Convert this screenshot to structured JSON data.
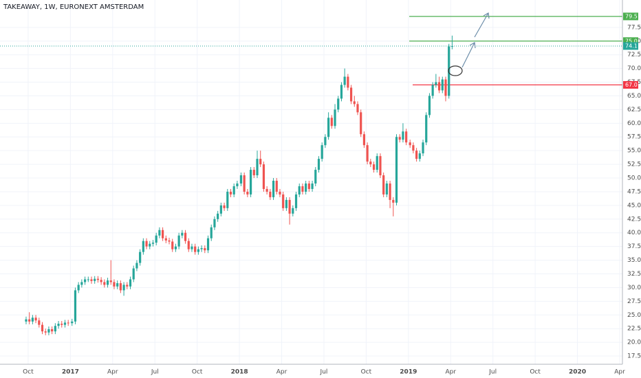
{
  "chart_data": {
    "type": "candlestick",
    "title": "TAKEAWAY, 1W, EURONEXT AMSTERDAM",
    "up_color": "#26a69a",
    "down_color": "#ef5350",
    "x": [
      "2016-W39",
      "2016-W40",
      "2016-W41",
      "2016-W42",
      "2016-W43",
      "2016-W44",
      "2016-W45",
      "2016-W46",
      "2016-W47",
      "2016-W48",
      "2016-W49",
      "2016-W50",
      "2016-W51",
      "2016-W52",
      "2017-W01",
      "2017-W02",
      "2017-W03",
      "2017-W04",
      "2017-W05",
      "2017-W06",
      "2017-W07",
      "2017-W08",
      "2017-W09",
      "2017-W10",
      "2017-W11",
      "2017-W12",
      "2017-W13",
      "2017-W14",
      "2017-W15",
      "2017-W16",
      "2017-W17",
      "2017-W18",
      "2017-W19",
      "2017-W20",
      "2017-W21",
      "2017-W22",
      "2017-W23",
      "2017-W24",
      "2017-W25",
      "2017-W26",
      "2017-W27",
      "2017-W28",
      "2017-W29",
      "2017-W30",
      "2017-W31",
      "2017-W32",
      "2017-W33",
      "2017-W34",
      "2017-W35",
      "2017-W36",
      "2017-W37",
      "2017-W38",
      "2017-W39",
      "2017-W40",
      "2017-W41",
      "2017-W42",
      "2017-W43",
      "2017-W44",
      "2017-W45",
      "2017-W46",
      "2017-W47",
      "2017-W48",
      "2017-W49",
      "2017-W50",
      "2017-W51",
      "2017-W52",
      "2018-W01",
      "2018-W02",
      "2018-W03",
      "2018-W04",
      "2018-W05",
      "2018-W06",
      "2018-W07",
      "2018-W08",
      "2018-W09",
      "2018-W10",
      "2018-W11",
      "2018-W12",
      "2018-W13",
      "2018-W14",
      "2018-W15",
      "2018-W16",
      "2018-W17",
      "2018-W18",
      "2018-W19",
      "2018-W20",
      "2018-W21",
      "2018-W22",
      "2018-W23",
      "2018-W24",
      "2018-W25",
      "2018-W26",
      "2018-W27",
      "2018-W28",
      "2018-W29",
      "2018-W30",
      "2018-W31",
      "2018-W32",
      "2018-W33",
      "2018-W34",
      "2018-W35",
      "2018-W36",
      "2018-W37",
      "2018-W38",
      "2018-W39",
      "2018-W40",
      "2018-W41",
      "2018-W42",
      "2018-W43",
      "2018-W44",
      "2018-W45",
      "2018-W46",
      "2018-W47",
      "2018-W48",
      "2018-W49",
      "2018-W50",
      "2018-W51",
      "2018-W52",
      "2019-W01",
      "2019-W02",
      "2019-W03",
      "2019-W04",
      "2019-W05",
      "2019-W06",
      "2019-W07",
      "2019-W08",
      "2019-W09",
      "2019-W10",
      "2019-W11",
      "2019-W12",
      "2019-W13",
      "2019-W14"
    ],
    "open": [
      23.8,
      24.2,
      23.8,
      24.5,
      24.0,
      23.2,
      22.0,
      21.8,
      22.4,
      22.0,
      23.0,
      23.4,
      23.2,
      23.6,
      23.5,
      23.8,
      29.5,
      30.5,
      31.0,
      31.5,
      31.5,
      31.2,
      31.6,
      31.4,
      31.0,
      30.5,
      31.3,
      31.0,
      30.2,
      30.8,
      29.5,
      30.5,
      30.2,
      31.5,
      33.5,
      34.5,
      36.5,
      38.5,
      37.5,
      38.0,
      38.2,
      39.5,
      40.5,
      39.0,
      38.6,
      38.4,
      37.0,
      37.5,
      39.5,
      40.0,
      38.5,
      37.0,
      37.5,
      36.5,
      37.0,
      37.2,
      36.8,
      39.0,
      41.0,
      42.5,
      43.5,
      45.0,
      44.5,
      47.5,
      47.0,
      48.5,
      49.0,
      50.5,
      47.5,
      47.0,
      51.5,
      50.5,
      53.5,
      52.5,
      48.0,
      47.5,
      46.5,
      49.5,
      47.5,
      47.0,
      44.5,
      46.0,
      43.5,
      44.5,
      47.0,
      48.5,
      47.5,
      49.0,
      48.0,
      49.0,
      51.5,
      53.5,
      56.0,
      57.5,
      61.0,
      59.5,
      62.5,
      64.5,
      67.0,
      68.5,
      66.5,
      64.0,
      63.5,
      62.0,
      58.0,
      56.0,
      53.0,
      52.5,
      51.5,
      54.0,
      50.5,
      47.0,
      49.0,
      46.0,
      45.5,
      57.5,
      57.0,
      58.5,
      56.5,
      56.0,
      55.0,
      53.5,
      54.5,
      56.5,
      61.5,
      65.0,
      67.0,
      67.5,
      66.0,
      68.0,
      65.0,
      74.0
    ],
    "high": [
      24.7,
      25.5,
      25.0,
      25.0,
      24.5,
      23.7,
      22.5,
      22.9,
      22.9,
      23.5,
      23.9,
      23.9,
      24.1,
      24.1,
      24.3,
      30.0,
      31.0,
      31.5,
      32.0,
      32.0,
      32.0,
      32.1,
      32.1,
      31.9,
      31.5,
      31.8,
      35.0,
      31.5,
      31.3,
      31.3,
      31.0,
      31.0,
      32.0,
      34.0,
      35.0,
      37.0,
      39.0,
      39.0,
      38.5,
      38.7,
      40.0,
      41.0,
      41.0,
      39.5,
      39.1,
      38.9,
      38.0,
      40.0,
      40.5,
      40.5,
      39.0,
      38.0,
      38.0,
      37.5,
      37.7,
      37.7,
      39.5,
      41.5,
      43.0,
      44.0,
      45.5,
      45.5,
      48.0,
      48.0,
      49.0,
      49.5,
      51.0,
      51.0,
      48.0,
      52.0,
      52.0,
      55.0,
      55.0,
      53.0,
      48.5,
      48.0,
      50.0,
      50.0,
      48.0,
      47.5,
      46.5,
      46.5,
      45.0,
      47.5,
      49.0,
      49.0,
      49.5,
      49.5,
      49.5,
      52.0,
      54.0,
      56.5,
      58.0,
      62.0,
      61.5,
      63.5,
      65.0,
      67.5,
      70.0,
      69.0,
      67.0,
      65.0,
      64.0,
      62.5,
      58.5,
      56.5,
      53.5,
      53.0,
      54.5,
      54.5,
      51.0,
      49.5,
      49.5,
      46.5,
      58.0,
      58.0,
      60.0,
      59.0,
      57.0,
      56.5,
      55.5,
      55.0,
      57.0,
      62.0,
      65.5,
      67.5,
      69.0,
      68.5,
      68.5,
      68.5,
      74.5,
      76.0
    ],
    "low": [
      23.3,
      23.3,
      23.3,
      23.5,
      22.7,
      21.5,
      21.3,
      21.3,
      21.5,
      21.5,
      22.5,
      22.7,
      22.7,
      23.0,
      23.0,
      23.3,
      29.0,
      30.0,
      30.5,
      31.0,
      30.7,
      30.7,
      30.9,
      30.5,
      30.0,
      30.0,
      30.5,
      29.7,
      29.7,
      29.0,
      28.5,
      29.7,
      29.7,
      31.0,
      33.0,
      34.0,
      36.0,
      37.0,
      37.0,
      37.5,
      37.7,
      39.0,
      38.5,
      38.1,
      37.9,
      36.5,
      36.5,
      37.0,
      39.0,
      38.0,
      36.5,
      36.5,
      36.0,
      36.0,
      36.5,
      36.3,
      36.3,
      38.5,
      40.5,
      42.0,
      43.0,
      44.0,
      44.0,
      46.5,
      46.5,
      48.0,
      48.5,
      47.0,
      46.5,
      46.5,
      50.0,
      50.0,
      52.0,
      47.5,
      47.0,
      46.0,
      46.0,
      47.0,
      46.5,
      44.0,
      44.0,
      41.5,
      43.0,
      44.0,
      46.5,
      47.0,
      47.0,
      47.5,
      47.5,
      48.5,
      51.0,
      53.0,
      55.5,
      57.0,
      59.0,
      59.0,
      62.0,
      64.0,
      66.5,
      66.0,
      63.5,
      63.0,
      61.5,
      57.5,
      55.5,
      52.5,
      52.0,
      51.0,
      51.0,
      50.0,
      46.5,
      46.5,
      44.5,
      43.0,
      45.0,
      56.5,
      56.5,
      56.0,
      55.5,
      54.5,
      53.0,
      53.0,
      54.0,
      56.0,
      61.0,
      64.5,
      66.5,
      65.5,
      65.5,
      64.0,
      64.5,
      73.5
    ],
    "close": [
      24.2,
      23.8,
      24.5,
      24.0,
      23.2,
      22.0,
      21.8,
      22.4,
      22.0,
      23.0,
      23.4,
      23.2,
      23.6,
      23.5,
      23.8,
      29.5,
      30.5,
      31.0,
      31.5,
      31.5,
      31.2,
      31.6,
      31.4,
      31.0,
      30.5,
      31.3,
      31.0,
      30.2,
      30.8,
      29.5,
      30.5,
      30.2,
      31.5,
      33.5,
      34.5,
      36.5,
      38.5,
      37.5,
      38.0,
      38.2,
      39.5,
      40.5,
      39.0,
      38.6,
      38.4,
      37.0,
      37.5,
      39.5,
      40.0,
      38.5,
      37.0,
      37.5,
      36.5,
      37.0,
      37.2,
      36.8,
      39.0,
      41.0,
      42.5,
      43.5,
      45.0,
      44.5,
      47.5,
      47.0,
      48.5,
      49.0,
      50.5,
      47.5,
      47.0,
      51.5,
      50.5,
      53.5,
      52.5,
      48.0,
      47.5,
      46.5,
      49.5,
      47.5,
      47.0,
      44.5,
      46.0,
      43.5,
      44.5,
      47.0,
      48.5,
      47.5,
      49.0,
      48.0,
      49.0,
      51.5,
      53.5,
      56.0,
      57.5,
      61.0,
      59.5,
      62.5,
      64.5,
      67.0,
      68.5,
      66.5,
      64.0,
      63.5,
      62.0,
      58.0,
      56.0,
      53.0,
      52.5,
      51.5,
      54.0,
      50.5,
      47.0,
      49.0,
      46.0,
      45.5,
      57.5,
      57.0,
      58.5,
      56.5,
      56.0,
      55.0,
      53.5,
      54.5,
      56.5,
      61.5,
      65.0,
      67.0,
      67.5,
      66.0,
      68.0,
      65.0,
      74.0,
      74.1
    ],
    "last_price": 74.1,
    "levels": [
      {
        "value": 79.5,
        "color": "#4caf50"
      },
      {
        "value": 75,
        "label": "75.0",
        "color": "#4caf50"
      },
      {
        "value": 67,
        "label": "67.0",
        "color": "#f23645"
      }
    ],
    "xlim": [
      "2016-08",
      "2020-04"
    ],
    "xticks": [
      {
        "value": "2016-10",
        "label": "Oct"
      },
      {
        "value": "2017-01",
        "label": "2017"
      },
      {
        "value": "2017-04",
        "label": "Apr"
      },
      {
        "value": "2017-07",
        "label": "Jul"
      },
      {
        "value": "2017-10",
        "label": "Oct"
      },
      {
        "value": "2018-01",
        "label": "2018"
      },
      {
        "value": "2018-04",
        "label": "Apr"
      },
      {
        "value": "2018-07",
        "label": "Jul"
      },
      {
        "value": "2018-10",
        "label": "Oct"
      },
      {
        "value": "2019-01",
        "label": "2019"
      },
      {
        "value": "2019-04",
        "label": "Apr"
      },
      {
        "value": "2019-07",
        "label": "Jul"
      },
      {
        "value": "2019-10",
        "label": "Oct"
      },
      {
        "value": "2020-01",
        "label": "2020"
      },
      {
        "value": "2020-04",
        "label": "Apr"
      }
    ],
    "ylim": [
      16,
      82.5
    ],
    "yticks": [
      17.5,
      {
        "value": 20,
        "label": "20.0"
      },
      22.5,
      {
        "value": 25,
        "label": "25.0"
      },
      27.5,
      {
        "value": 30,
        "label": "30.0"
      },
      32.5,
      {
        "value": 35,
        "label": "35.0"
      },
      37.5,
      {
        "value": 40,
        "label": "40.0"
      },
      42.5,
      {
        "value": 45,
        "label": "45.0"
      },
      47.5,
      {
        "value": 50,
        "label": "50.0"
      },
      52.5,
      {
        "value": 55,
        "label": "55.0"
      },
      57.5,
      {
        "value": 60,
        "label": "60.0"
      },
      62.5,
      {
        "value": 65,
        "label": "65.0"
      },
      67.5,
      {
        "value": 70,
        "label": "70.0"
      },
      72.5,
      {
        "value": 75,
        "label": "75.0"
      },
      77.5
    ],
    "grid": true
  }
}
